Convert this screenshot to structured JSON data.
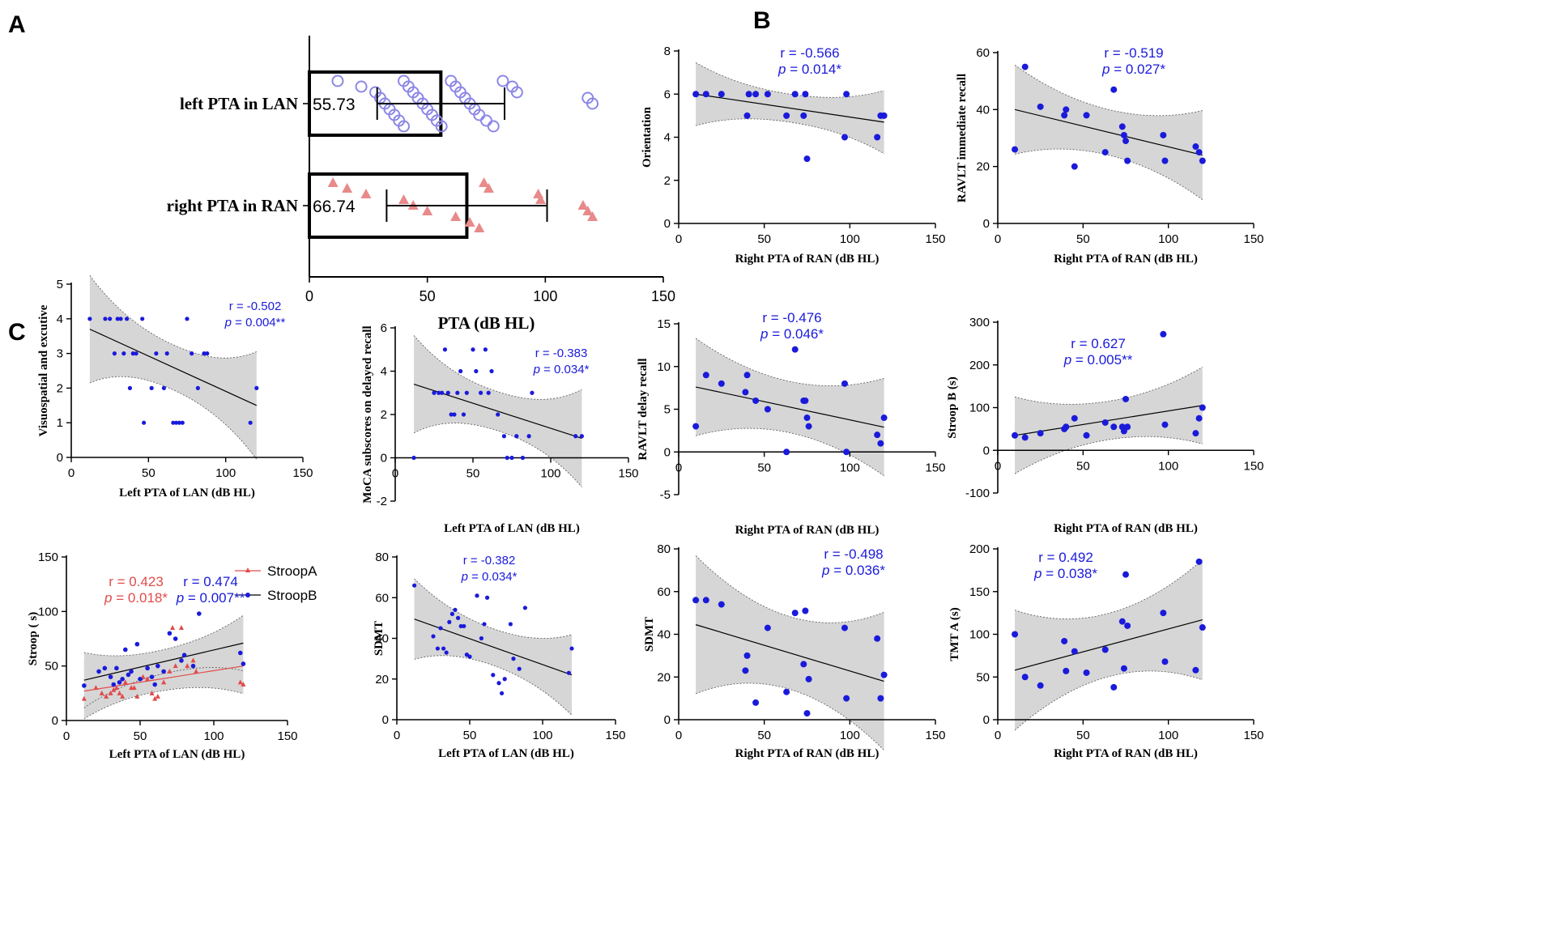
{
  "panel_labels": {
    "a": "A",
    "b": "B",
    "c": "C"
  },
  "colors": {
    "blue": "#1a1adb",
    "red": "#e34a4a",
    "pink": "#e88a8a",
    "lavender": "#8c87e6",
    "band": "#d6d6d6"
  },
  "chart_data": [
    {
      "id": "A",
      "type": "bar",
      "orientation": "horizontal",
      "categories": [
        "left PTA in LAN",
        "right PTA in RAN"
      ],
      "values": [
        55.73,
        66.74
      ],
      "value_labels": [
        "55.73",
        "66.74"
      ],
      "sd": [
        27,
        34
      ],
      "points": [
        [
          12,
          22,
          28,
          30,
          32,
          34,
          36,
          38,
          40,
          40,
          42,
          44,
          46,
          48,
          50,
          52,
          54,
          56,
          60,
          62,
          64,
          66,
          68,
          70,
          72,
          75,
          78,
          82,
          86,
          88,
          118,
          120
        ],
        [
          10,
          16,
          24,
          40,
          44,
          50,
          62,
          68,
          72,
          74,
          76,
          97,
          98,
          116,
          118,
          120
        ]
      ],
      "xlabel": "PTA (dB HL)",
      "xlim": [
        0,
        150
      ],
      "xticks": [
        0,
        50,
        100,
        150
      ]
    },
    {
      "id": "B1",
      "type": "scatter",
      "xlabel": "Right PTA of RAN (dB HL)",
      "ylabel": "Orientation",
      "xlim": [
        0,
        150
      ],
      "ylim": [
        0,
        8
      ],
      "xticks": [
        0,
        50,
        100,
        150
      ],
      "yticks": [
        0,
        2,
        4,
        6,
        8
      ],
      "x": [
        10,
        16,
        25,
        40,
        41,
        45,
        52,
        63,
        68,
        73,
        74,
        75,
        97,
        98,
        116,
        118,
        120
      ],
      "y": [
        6,
        6,
        6,
        5,
        6,
        6,
        6,
        5,
        6,
        5,
        6,
        3,
        4,
        6,
        4,
        5,
        5
      ],
      "fit": {
        "x": [
          10,
          120
        ],
        "y": [
          6.0,
          4.7
        ],
        "band": [
          0.65,
          0.9
        ]
      },
      "stat_r": "r = -0.566",
      "stat_p": "p = 0.014*"
    },
    {
      "id": "B2",
      "type": "scatter",
      "xlabel": "Right PTA of RAN (dB HL)",
      "ylabel": "RAVLT immediate recall",
      "xlim": [
        0,
        150
      ],
      "ylim": [
        0,
        60
      ],
      "xticks": [
        0,
        50,
        100,
        150
      ],
      "yticks": [
        0,
        20,
        40,
        60
      ],
      "x": [
        10,
        16,
        25,
        39,
        40,
        45,
        52,
        63,
        68,
        73,
        74,
        75,
        76,
        97,
        98,
        116,
        118,
        120
      ],
      "y": [
        26,
        55,
        41,
        38,
        40,
        20,
        38,
        25,
        47,
        34,
        31,
        29,
        22,
        31,
        22,
        27,
        25,
        22
      ],
      "fit": {
        "x": [
          10,
          120
        ],
        "y": [
          40,
          24
        ],
        "band": [
          8,
          8.5
        ]
      },
      "stat_r": "r = -0.519",
      "stat_p": "p = 0.027*"
    },
    {
      "id": "C1",
      "type": "scatter",
      "xlabel": "Left PTA of LAN (dB HL)",
      "ylabel": "Visuospatial and excutive",
      "xlim": [
        0,
        150
      ],
      "ylim": [
        0,
        5
      ],
      "xticks": [
        0,
        50,
        100,
        150
      ],
      "yticks": [
        0,
        1,
        2,
        3,
        4,
        5
      ],
      "x": [
        12,
        22,
        25,
        28,
        30,
        32,
        34,
        36,
        38,
        40,
        42,
        46,
        47,
        52,
        55,
        60,
        62,
        66,
        68,
        70,
        72,
        75,
        78,
        82,
        86,
        88,
        116,
        120
      ],
      "y": [
        4,
        4,
        4,
        3,
        4,
        4,
        3,
        4,
        2,
        3,
        3,
        4,
        1,
        2,
        3,
        2,
        3,
        1,
        1,
        1,
        1,
        4,
        3,
        2,
        3,
        3,
        1,
        2
      ],
      "fit": {
        "x": [
          12,
          120
        ],
        "y": [
          3.7,
          1.5
        ],
        "band": [
          0.65,
          1.0
        ]
      },
      "stat_r": "r = -0.502",
      "stat_p": "p = 0.004**"
    },
    {
      "id": "C2",
      "type": "scatter",
      "xlabel": "Left PTA of LAN (dB HL)",
      "ylabel": "MoCA subscores on delayed recall",
      "xlim": [
        0,
        150
      ],
      "ylim": [
        -2,
        6
      ],
      "xticks": [
        0,
        50,
        100,
        150
      ],
      "yticks": [
        -2,
        0,
        2,
        4,
        6
      ],
      "x": [
        12,
        25,
        28,
        30,
        32,
        34,
        36,
        38,
        40,
        42,
        44,
        46,
        50,
        52,
        55,
        58,
        60,
        62,
        66,
        70,
        72,
        75,
        78,
        82,
        86,
        88,
        116,
        120
      ],
      "y": [
        0,
        3,
        3,
        3,
        5,
        3,
        2,
        2,
        3,
        4,
        2,
        3,
        5,
        4,
        3,
        5,
        3,
        4,
        2,
        1,
        0,
        0,
        1,
        0,
        1,
        3,
        1,
        1
      ],
      "fit": {
        "x": [
          12,
          120
        ],
        "y": [
          3.4,
          0.9
        ],
        "band": [
          0.9,
          1.5
        ]
      },
      "stat_r": "r = -0.383",
      "stat_p": "p = 0.034*"
    },
    {
      "id": "C3",
      "type": "scatter",
      "xlabel": "Right PTA of RAN (dB HL)",
      "ylabel": "RAVLT delay recall",
      "xlim": [
        0,
        150
      ],
      "ylim": [
        -5,
        15
      ],
      "xticks": [
        0,
        50,
        100,
        150
      ],
      "yticks": [
        -5,
        0,
        5,
        10,
        15
      ],
      "x": [
        10,
        16,
        25,
        39,
        40,
        45,
        52,
        63,
        68,
        73,
        74,
        75,
        76,
        97,
        98,
        116,
        118,
        120
      ],
      "y": [
        3,
        9,
        8,
        7,
        9,
        6,
        5,
        0,
        12,
        6,
        6,
        4,
        3,
        8,
        0,
        2,
        1,
        4
      ],
      "fit": {
        "x": [
          10,
          120
        ],
        "y": [
          7.6,
          2.9
        ],
        "band": [
          3.0,
          3.0
        ]
      },
      "stat_r": "r = -0.476",
      "stat_p": "p = 0.046*"
    },
    {
      "id": "C4",
      "type": "scatter",
      "xlabel": "Right PTA of RAN (dB HL)",
      "ylabel": "Stroop B (s)",
      "xlim": [
        0,
        150
      ],
      "ylim": [
        -100,
        300
      ],
      "xticks": [
        0,
        50,
        100,
        150
      ],
      "yticks": [
        -100,
        0,
        100,
        200,
        300
      ],
      "x": [
        10,
        16,
        25,
        39,
        40,
        45,
        52,
        63,
        68,
        73,
        74,
        75,
        76,
        97,
        98,
        116,
        118,
        120
      ],
      "y": [
        35,
        30,
        40,
        50,
        55,
        75,
        35,
        65,
        55,
        55,
        45,
        120,
        55,
        272,
        60,
        40,
        75,
        100
      ],
      "fit": {
        "x": [
          10,
          120
        ],
        "y": [
          35,
          105
        ],
        "band": [
          45,
          50
        ]
      },
      "stat_r": "r = 0.627",
      "stat_p": "p = 0.005**"
    },
    {
      "id": "C5",
      "type": "scatter",
      "xlabel": "Left PTA of LAN (dB HL)",
      "ylabel": "Stroop ( s)",
      "xlim": [
        0,
        150
      ],
      "ylim": [
        0,
        150
      ],
      "xticks": [
        0,
        50,
        100,
        150
      ],
      "yticks": [
        0,
        50,
        100,
        150
      ],
      "series": [
        {
          "name": "StroopA",
          "color": "red",
          "x": [
            12,
            20,
            24,
            27,
            30,
            32,
            34,
            36,
            38,
            40,
            44,
            46,
            48,
            52,
            55,
            58,
            60,
            62,
            66,
            70,
            72,
            74,
            78,
            82,
            86,
            88,
            118,
            120
          ],
          "y": [
            20,
            30,
            25,
            22,
            25,
            28,
            30,
            25,
            22,
            35,
            30,
            30,
            22,
            40,
            38,
            25,
            20,
            22,
            35,
            45,
            85,
            50,
            85,
            50,
            55,
            45,
            35,
            33
          ],
          "fit": {
            "x": [
              12,
              120
            ],
            "y": [
              27,
              50
            ]
          }
        },
        {
          "name": "StroopB",
          "color": "blue",
          "x": [
            12,
            22,
            26,
            30,
            32,
            34,
            36,
            38,
            40,
            42,
            44,
            48,
            50,
            55,
            58,
            60,
            62,
            66,
            70,
            74,
            78,
            80,
            86,
            90,
            118,
            120
          ],
          "y": [
            32,
            45,
            48,
            40,
            33,
            48,
            35,
            38,
            65,
            42,
            45,
            70,
            38,
            48,
            40,
            33,
            50,
            45,
            80,
            75,
            55,
            60,
            50,
            98,
            62,
            52
          ],
          "fit": {
            "x": [
              12,
              120
            ],
            "y": [
              37,
              71
            ]
          }
        }
      ],
      "band": [
        11,
        16
      ],
      "legend": [
        "StroopA",
        "StroopB"
      ],
      "stat_r_a": "r = 0.423",
      "stat_p_a": "p = 0.018*",
      "stat_r_b": "r = 0.474",
      "stat_p_b": "p = 0.007**"
    },
    {
      "id": "C6",
      "type": "scatter",
      "xlabel": "Left PTA of LAN (dB HL)",
      "ylabel": "SDMT",
      "xlim": [
        0,
        150
      ],
      "ylim": [
        0,
        80
      ],
      "xticks": [
        0,
        50,
        100,
        150
      ],
      "yticks": [
        0,
        20,
        40,
        60,
        80
      ],
      "x": [
        12,
        25,
        28,
        30,
        32,
        34,
        36,
        38,
        40,
        42,
        44,
        46,
        48,
        50,
        55,
        58,
        60,
        62,
        66,
        70,
        72,
        74,
        78,
        80,
        84,
        88,
        118,
        120
      ],
      "y": [
        66,
        41,
        35,
        45,
        35,
        33,
        48,
        52,
        54,
        50,
        46,
        46,
        32,
        31,
        61,
        40,
        47,
        60,
        22,
        18,
        13,
        20,
        47,
        30,
        25,
        55,
        23,
        35
      ],
      "fit": {
        "x": [
          12,
          120
        ],
        "y": [
          49.5,
          22
        ]
      },
      "band": [
        9,
        12
      ],
      "stat_r": "r = -0.382",
      "stat_p": "p = 0.034*"
    },
    {
      "id": "C7",
      "type": "scatter",
      "xlabel": "Right PTA of RAN (dB HL)",
      "ylabel": "SDMT",
      "xlim": [
        0,
        150
      ],
      "ylim": [
        0,
        80
      ],
      "xticks": [
        0,
        50,
        100,
        150
      ],
      "yticks": [
        0,
        20,
        40,
        60,
        80
      ],
      "x": [
        10,
        16,
        25,
        39,
        40,
        45,
        52,
        63,
        68,
        73,
        74,
        75,
        76,
        97,
        98,
        116,
        118,
        120
      ],
      "y": [
        56,
        56,
        54,
        23,
        30,
        8,
        43,
        13,
        50,
        26,
        51,
        3,
        19,
        43,
        10,
        38,
        10,
        21
      ],
      "fit": {
        "x": [
          10,
          120
        ],
        "y": [
          44.5,
          18
        ]
      },
      "band": [
        17,
        17
      ],
      "stat_r": "r = -0.498",
      "stat_p": "p = 0.036*"
    },
    {
      "id": "C8",
      "type": "scatter",
      "xlabel": "Right PTA of RAN (dB HL)",
      "ylabel": "TMT A (s)",
      "xlim": [
        0,
        150
      ],
      "ylim": [
        0,
        200
      ],
      "xticks": [
        0,
        50,
        100,
        150
      ],
      "yticks": [
        0,
        50,
        100,
        150,
        200
      ],
      "x": [
        10,
        16,
        25,
        39,
        40,
        45,
        52,
        63,
        68,
        73,
        74,
        75,
        76,
        97,
        98,
        116,
        118,
        120
      ],
      "y": [
        100,
        50,
        40,
        92,
        57,
        80,
        55,
        82,
        38,
        115,
        60,
        170,
        110,
        125,
        68,
        58,
        185,
        108
      ],
      "fit": {
        "x": [
          10,
          120
        ],
        "y": [
          58,
          117
        ]
      },
      "band": [
        37,
        37
      ],
      "stat_r": "r = 0.492",
      "stat_p": "p = 0.038*"
    }
  ]
}
